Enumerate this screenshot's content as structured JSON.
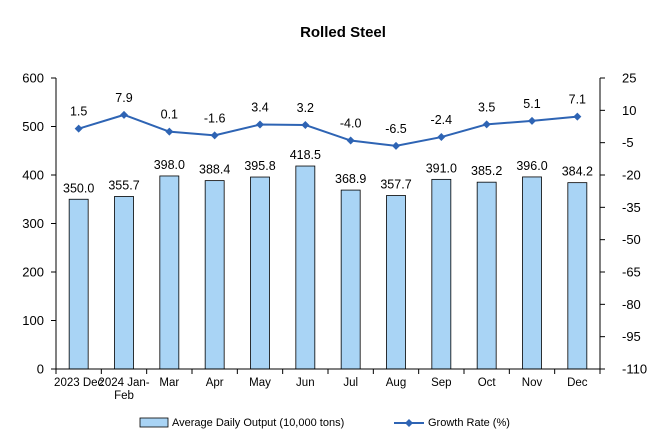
{
  "chart_data": {
    "type": "bar",
    "title": "Rolled Steel",
    "categories": [
      [
        "2023 Dec"
      ],
      [
        "2024 Jan-",
        "Feb"
      ],
      [
        "Mar"
      ],
      [
        "Apr"
      ],
      [
        "May"
      ],
      [
        "Jun"
      ],
      [
        "Jul"
      ],
      [
        "Aug"
      ],
      [
        "Sep"
      ],
      [
        "Oct"
      ],
      [
        "Nov"
      ],
      [
        "Dec"
      ]
    ],
    "series": [
      {
        "name": "Average Daily Output (10,000 tons)",
        "type": "bar",
        "axis": "left",
        "color": "#a9d4f5",
        "values": [
          350.0,
          355.7,
          398.0,
          388.4,
          395.8,
          418.5,
          368.9,
          357.7,
          391.0,
          385.2,
          396.0,
          384.2
        ]
      },
      {
        "name": "Growth Rate (%)",
        "type": "line",
        "axis": "right",
        "color": "#2e64b4",
        "marker": "diamond",
        "values": [
          1.5,
          7.9,
          0.1,
          -1.6,
          3.4,
          3.2,
          -4.0,
          -6.5,
          -2.4,
          3.5,
          5.1,
          7.1
        ]
      }
    ],
    "y_left": {
      "min": 0,
      "max": 600,
      "ticks": [
        0,
        100,
        200,
        300,
        400,
        500,
        600
      ]
    },
    "y_right": {
      "min": -110,
      "max": 25,
      "ticks": [
        25,
        10,
        -5,
        -20,
        -35,
        -50,
        -65,
        -80,
        -95,
        -110
      ]
    },
    "grid": false,
    "legend_position": "bottom"
  }
}
